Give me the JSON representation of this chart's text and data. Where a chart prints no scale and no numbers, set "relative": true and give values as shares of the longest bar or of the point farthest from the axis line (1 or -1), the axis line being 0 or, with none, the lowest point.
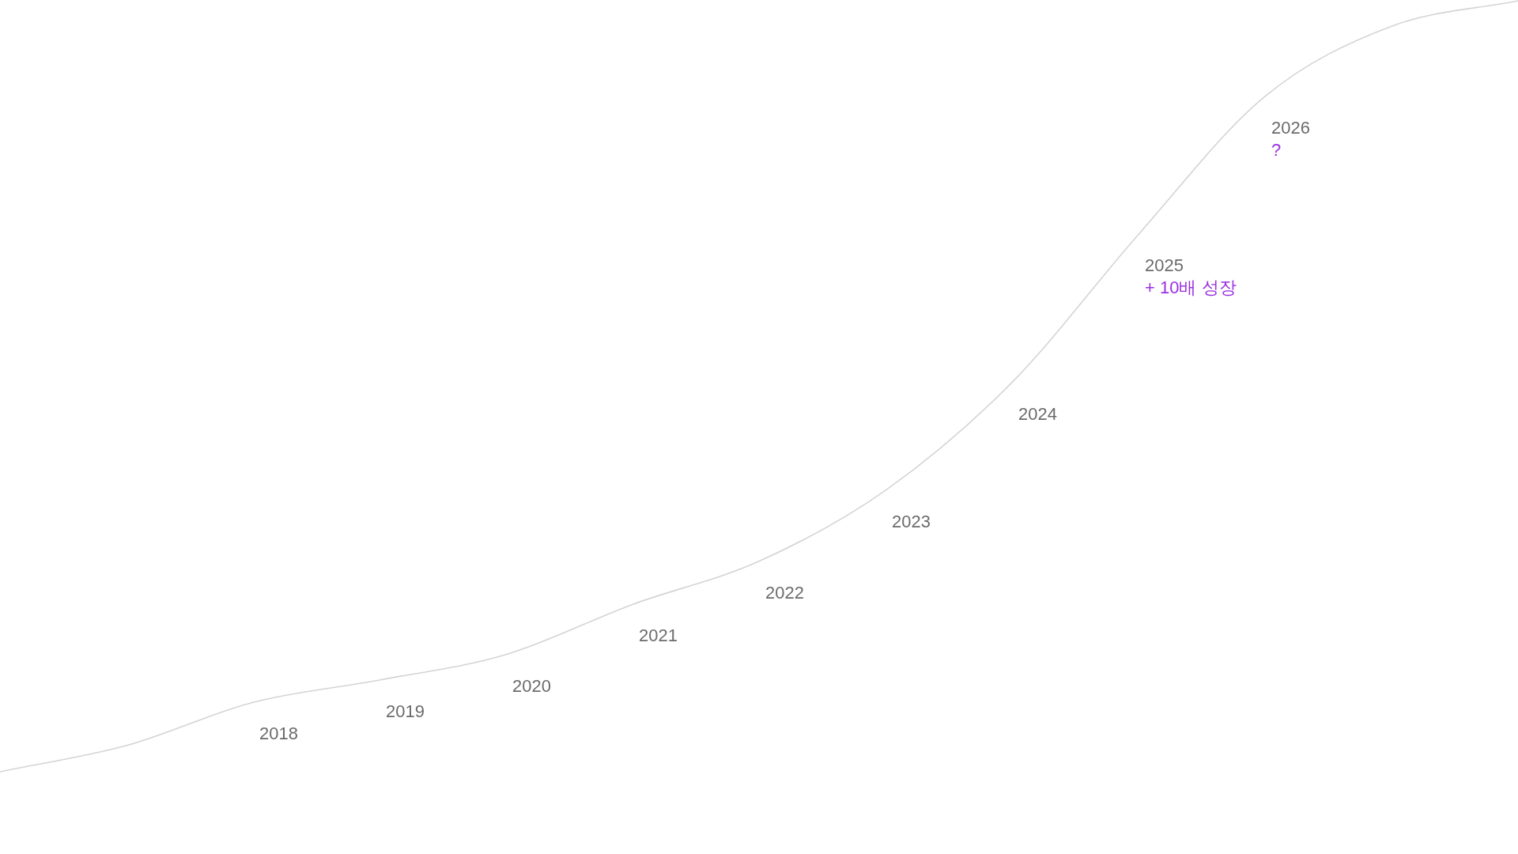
{
  "chart_data": {
    "type": "line",
    "relative": true,
    "categories": [
      null,
      null,
      "2018",
      "2019",
      "2020",
      "2021",
      "2022",
      "2023",
      "2024",
      "2025",
      "2026",
      null,
      null
    ],
    "values": [
      0,
      0.034,
      0.09,
      0.119,
      0.152,
      0.217,
      0.273,
      0.365,
      0.505,
      0.697,
      0.876,
      0.967,
      1
    ],
    "color": "#d4d4d4",
    "marker": "none",
    "line_style": "solid",
    "annotations": [
      {
        "text": "+ 10배 성장",
        "x": "2025",
        "y": 0.697
      },
      {
        "text": "?",
        "x": "2026",
        "y": 0.876
      }
    ]
  }
}
